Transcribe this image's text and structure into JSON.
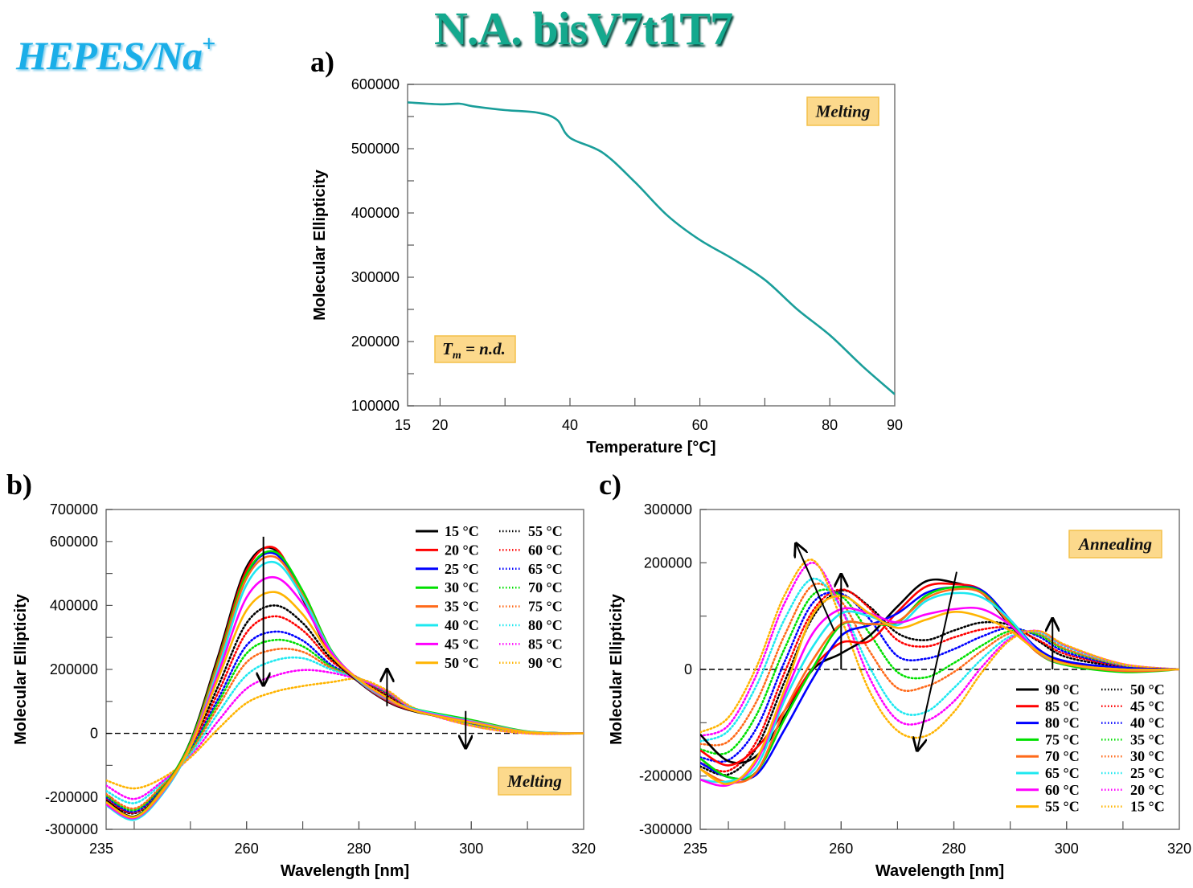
{
  "header": {
    "buffer_label": "HEPES/Na",
    "buffer_sup": "+",
    "title": "N.A. bisV7t1T7"
  },
  "panels": {
    "a": "a)",
    "b": "b)",
    "c": "c)"
  },
  "chart_data": [
    {
      "id": "a",
      "type": "line",
      "xlabel": "Temperature [°C]",
      "ylabel": "Molecular  Ellipticity",
      "xlim": [
        15,
        90
      ],
      "ylim": [
        100000,
        600000
      ],
      "xticks": [
        15,
        20,
        40,
        60,
        80,
        90
      ],
      "yticks": [
        100000,
        200000,
        300000,
        400000,
        500000,
        600000
      ],
      "annotations": {
        "mode": "Melting",
        "tm_label": "T",
        "tm_sub": "m",
        "tm_value": " = n.d."
      },
      "series": [
        {
          "name": "Melting",
          "color": "#1a9e9a",
          "style": "solid",
          "x": [
            15,
            20,
            23,
            25,
            30,
            35,
            38,
            40,
            45,
            50,
            55,
            60,
            65,
            70,
            75,
            80,
            85,
            90
          ],
          "y": [
            572000,
            569000,
            570000,
            566000,
            560000,
            556000,
            545000,
            517000,
            494000,
            448000,
            396000,
            358000,
            329000,
            296000,
            250000,
            210000,
            162000,
            118000
          ]
        }
      ]
    },
    {
      "id": "b",
      "type": "line",
      "xlabel": "Wavelength [nm]",
      "ylabel": "Molecular  Ellipticity",
      "xlim": [
        235,
        320
      ],
      "ylim": [
        -300000,
        700000
      ],
      "xticks": [
        235,
        260,
        280,
        300,
        320
      ],
      "yticks": [
        700000,
        600000,
        400000,
        200000,
        0,
        -200000,
        -300000
      ],
      "annotations": {
        "mode": "Melting"
      },
      "x": [
        235,
        240,
        245,
        250,
        255,
        260,
        265,
        270,
        275,
        280,
        285,
        290,
        300,
        310,
        320
      ],
      "series": [
        {
          "name": "15 °C",
          "color": "#000000",
          "style": "solid",
          "values": [
            -210000,
            -260000,
            -175000,
            -25000,
            245000,
            520000,
            575000,
            420000,
            245000,
            160000,
            100000,
            68000,
            35000,
            5000,
            0
          ]
        },
        {
          "name": "20 °C",
          "color": "#ff0000",
          "style": "solid",
          "values": [
            -215000,
            -262000,
            -178000,
            -30000,
            235000,
            510000,
            580000,
            425000,
            250000,
            162000,
            102000,
            70000,
            36000,
            5000,
            0
          ]
        },
        {
          "name": "25 °C",
          "color": "#0000ff",
          "style": "solid",
          "values": [
            -220000,
            -265000,
            -180000,
            -35000,
            225000,
            495000,
            562000,
            430000,
            255000,
            163000,
            104000,
            72000,
            38000,
            5000,
            0
          ]
        },
        {
          "name": "30 °C",
          "color": "#00e000",
          "style": "solid",
          "values": [
            -215000,
            -262000,
            -175000,
            -28000,
            228000,
            498000,
            568000,
            445000,
            262000,
            165000,
            106000,
            76000,
            42000,
            6000,
            0
          ]
        },
        {
          "name": "35 °C",
          "color": "#ff6a1a",
          "style": "solid",
          "values": [
            -218000,
            -264000,
            -178000,
            -35000,
            220000,
            485000,
            552000,
            432000,
            258000,
            164000,
            105000,
            73000,
            39000,
            5000,
            0
          ]
        },
        {
          "name": "40 °C",
          "color": "#1ee8f0",
          "style": "solid",
          "values": [
            -225000,
            -270000,
            -190000,
            -42000,
            205000,
            465000,
            535000,
            425000,
            258000,
            165000,
            108000,
            75000,
            38000,
            5000,
            0
          ]
        },
        {
          "name": "45 °C",
          "color": "#ff00ff",
          "style": "solid",
          "values": [
            -222000,
            -265000,
            -185000,
            -40000,
            190000,
            425000,
            488000,
            405000,
            255000,
            168000,
            110000,
            72000,
            36000,
            4000,
            0
          ]
        },
        {
          "name": "50 °C",
          "color": "#ffb400",
          "style": "solid",
          "values": [
            -215000,
            -262000,
            -182000,
            -42000,
            175000,
            385000,
            442000,
            372000,
            245000,
            168000,
            112000,
            70000,
            34000,
            4000,
            0
          ]
        },
        {
          "name": "55 °C",
          "color": "#000000",
          "style": "dotted",
          "values": [
            -210000,
            -250000,
            -175000,
            -45000,
            150000,
            345000,
            400000,
            345000,
            235000,
            170000,
            118000,
            72000,
            30000,
            3000,
            0
          ]
        },
        {
          "name": "60 °C",
          "color": "#ff0000",
          "style": "dotted",
          "values": [
            -205000,
            -248000,
            -172000,
            -48000,
            130000,
            315000,
            366000,
            322000,
            228000,
            172000,
            122000,
            73000,
            29000,
            2000,
            0
          ]
        },
        {
          "name": "65 °C",
          "color": "#0000ff",
          "style": "dotted",
          "values": [
            -200000,
            -245000,
            -170000,
            -52000,
            110000,
            275000,
            318000,
            290000,
            215000,
            172000,
            126000,
            75000,
            28000,
            2000,
            0
          ]
        },
        {
          "name": "70 °C",
          "color": "#00e000",
          "style": "dotted",
          "values": [
            -195000,
            -240000,
            -165000,
            -55000,
            98000,
            250000,
            292000,
            272000,
            210000,
            172000,
            128000,
            76000,
            27000,
            2000,
            0
          ]
        },
        {
          "name": "75 °C",
          "color": "#ff6a1a",
          "style": "dotted",
          "values": [
            -190000,
            -235000,
            -162000,
            -60000,
            85000,
            222000,
            262000,
            255000,
            205000,
            172000,
            130000,
            76000,
            26000,
            1000,
            0
          ]
        },
        {
          "name": "80 °C",
          "color": "#1ee8f0",
          "style": "dotted",
          "values": [
            -180000,
            -218000,
            -155000,
            -65000,
            65000,
            182000,
            228000,
            235000,
            200000,
            170000,
            132000,
            77000,
            25000,
            1000,
            0
          ]
        },
        {
          "name": "85 °C",
          "color": "#ff00ff",
          "style": "dotted",
          "values": [
            -163000,
            -205000,
            -150000,
            -72000,
            40000,
            140000,
            180000,
            198000,
            190000,
            168000,
            132000,
            76000,
            24000,
            0,
            0
          ]
        },
        {
          "name": "90 °C",
          "color": "#ffb400",
          "style": "dotted",
          "values": [
            -147000,
            -172000,
            -140000,
            -75000,
            15000,
            95000,
            130000,
            148000,
            160000,
            170000,
            135000,
            78000,
            24000,
            0,
            0
          ]
        }
      ]
    },
    {
      "id": "c",
      "type": "line",
      "xlabel": "Wavelength [nm]",
      "ylabel": "Molecular  Ellipticity",
      "xlim": [
        235,
        320
      ],
      "ylim": [
        -300000,
        300000
      ],
      "xticks": [
        235,
        260,
        280,
        300,
        320
      ],
      "yticks": [
        300000,
        200000,
        0,
        -200000,
        -300000
      ],
      "annotations": {
        "mode": "Annealing"
      },
      "x": [
        235,
        240,
        245,
        250,
        255,
        260,
        265,
        270,
        275,
        280,
        285,
        290,
        295,
        300,
        310,
        320
      ],
      "series": [
        {
          "name": "90 °C",
          "color": "#000000",
          "style": "solid",
          "values": [
            -122000,
            -172000,
            -162000,
            -87000,
            0,
            30000,
            63000,
            118000,
            165000,
            163000,
            143000,
            83000,
            33000,
            13000,
            3000,
            0
          ]
        },
        {
          "name": "85 °C",
          "color": "#ff0000",
          "style": "solid",
          "values": [
            -152000,
            -180000,
            -147000,
            -77000,
            3000,
            50000,
            53000,
            108000,
            155000,
            160000,
            148000,
            88000,
            33000,
            13000,
            2000,
            0
          ]
        },
        {
          "name": "80 °C",
          "color": "#0000ff",
          "style": "solid",
          "values": [
            -175000,
            -202000,
            -197000,
            -112000,
            -17000,
            63000,
            83000,
            105000,
            143000,
            154000,
            148000,
            93000,
            38000,
            15000,
            3000,
            0
          ]
        },
        {
          "name": "75 °C",
          "color": "#00e000",
          "style": "solid",
          "values": [
            -167000,
            -202000,
            -192000,
            -92000,
            3000,
            83000,
            85000,
            88000,
            138000,
            154000,
            145000,
            88000,
            30000,
            8000,
            -5000,
            0
          ]
        },
        {
          "name": "70 °C",
          "color": "#ff6a1a",
          "style": "solid",
          "values": [
            -187000,
            -212000,
            -192000,
            -77000,
            18000,
            85000,
            85000,
            90000,
            133000,
            150000,
            143000,
            85000,
            30000,
            10000,
            -3000,
            0
          ]
        },
        {
          "name": "65 °C",
          "color": "#1ee8f0",
          "style": "solid",
          "values": [
            -207000,
            -210000,
            -182000,
            -57000,
            43000,
            105000,
            100000,
            83000,
            128000,
            143000,
            135000,
            93000,
            33000,
            10000,
            0,
            0
          ]
        },
        {
          "name": "60 °C",
          "color": "#ff00ff",
          "style": "solid",
          "values": [
            -207000,
            -217000,
            -172000,
            -47000,
            68000,
            113000,
            105000,
            88000,
            103000,
            113000,
            113000,
            83000,
            33000,
            10000,
            0,
            0
          ]
        },
        {
          "name": "55 °C",
          "color": "#ffb400",
          "style": "solid",
          "values": [
            -187000,
            -215000,
            -167000,
            -37000,
            103000,
            138000,
            105000,
            78000,
            93000,
            108000,
            98000,
            73000,
            33000,
            10000,
            0,
            0
          ]
        },
        {
          "name": "50 °C",
          "color": "#000000",
          "style": "dotted",
          "values": [
            -182000,
            -197000,
            -147000,
            -22000,
            98000,
            148000,
            118000,
            68000,
            55000,
            73000,
            88000,
            83000,
            53000,
            23000,
            5000,
            0
          ]
        },
        {
          "name": "45 °C",
          "color": "#ff0000",
          "style": "dotted",
          "values": [
            -175000,
            -190000,
            -135000,
            -5000,
            110000,
            150000,
            115000,
            55000,
            43000,
            60000,
            75000,
            78000,
            55000,
            28000,
            6000,
            0
          ]
        },
        {
          "name": "40 °C",
          "color": "#0000ff",
          "style": "dotted",
          "values": [
            -165000,
            -170000,
            -110000,
            15000,
            125000,
            142000,
            95000,
            25000,
            20000,
            38000,
            62000,
            78000,
            62000,
            32000,
            7000,
            0
          ]
        },
        {
          "name": "35 °C",
          "color": "#00e000",
          "style": "dotted",
          "values": [
            -150000,
            -155000,
            -85000,
            40000,
            140000,
            138000,
            68000,
            -5000,
            -15000,
            12000,
            45000,
            72000,
            65000,
            36000,
            8000,
            0
          ]
        },
        {
          "name": "30 °C",
          "color": "#ff6a1a",
          "style": "dotted",
          "values": [
            -140000,
            -135000,
            -60000,
            65000,
            158000,
            128000,
            35000,
            -35000,
            -32000,
            -5000,
            35000,
            68000,
            68000,
            38000,
            8000,
            0
          ]
        },
        {
          "name": "25 °C",
          "color": "#1ee8f0",
          "style": "dotted",
          "values": [
            -135000,
            -115000,
            -30000,
            95000,
            170000,
            115000,
            5000,
            -75000,
            -80000,
            -35000,
            20000,
            62000,
            70000,
            42000,
            9000,
            0
          ]
        },
        {
          "name": "20 °C",
          "color": "#ff00ff",
          "style": "dotted",
          "values": [
            -125000,
            -105000,
            -10000,
            125000,
            200000,
            115000,
            -15000,
            -95000,
            -97000,
            -60000,
            5000,
            58000,
            72000,
            44000,
            10000,
            0
          ]
        },
        {
          "name": "15 °C",
          "color": "#ffb400",
          "style": "dotted",
          "values": [
            -118000,
            -90000,
            5000,
            140000,
            205000,
            95000,
            -40000,
            -115000,
            -125000,
            -80000,
            -5000,
            55000,
            72000,
            45000,
            10000,
            0
          ]
        }
      ]
    }
  ]
}
